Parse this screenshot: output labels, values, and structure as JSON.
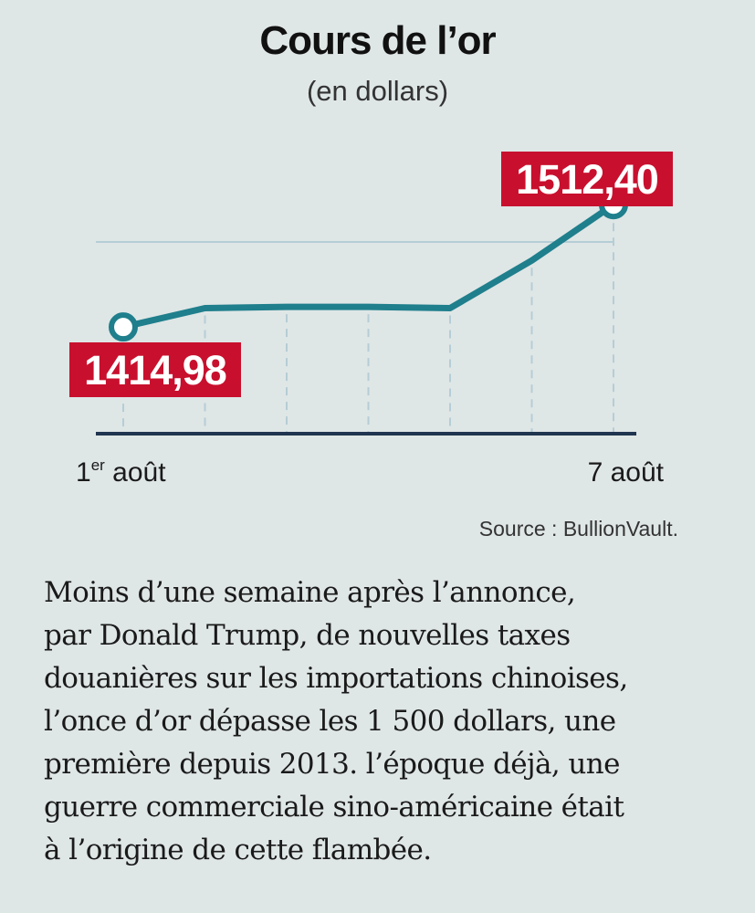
{
  "chart_data": {
    "type": "line",
    "title": "Cours de l’or",
    "subtitle": "(en dollars)",
    "x": [
      "1er août",
      "",
      "",
      "",
      "",
      "",
      "7 août"
    ],
    "x_tick_labels": {
      "start_sup": "er",
      "start_main_pre": "1",
      "start_main_post": " août",
      "end": "7 août"
    },
    "series": [
      {
        "values": [
          1414.98,
          1430,
          1431,
          1431,
          1430,
          1468,
          1512.4
        ]
      }
    ],
    "data_labels": {
      "first": "1414,98",
      "last": "1512,40"
    },
    "ylim": [
      1330,
      1530
    ],
    "grid": true,
    "colors": {
      "line": "#1f7f8c",
      "label_bg": "#c8102e",
      "label_text": "#ffffff",
      "axis": "#1f3550",
      "grid": "#b5cdd6"
    }
  },
  "source": "Source : BullionVault.",
  "caption_lines": [
    "Moins d’une semaine après l’annonce,",
    "par Donald Trump, de nouvelles taxes",
    "douanières sur les importations chinoises,",
    "l’once d’or dépasse les 1 500 dollars, une",
    "première depuis 2013. l’époque déjà, une",
    "guerre commerciale sino-américaine était",
    "à l’origine de cette flambée."
  ]
}
